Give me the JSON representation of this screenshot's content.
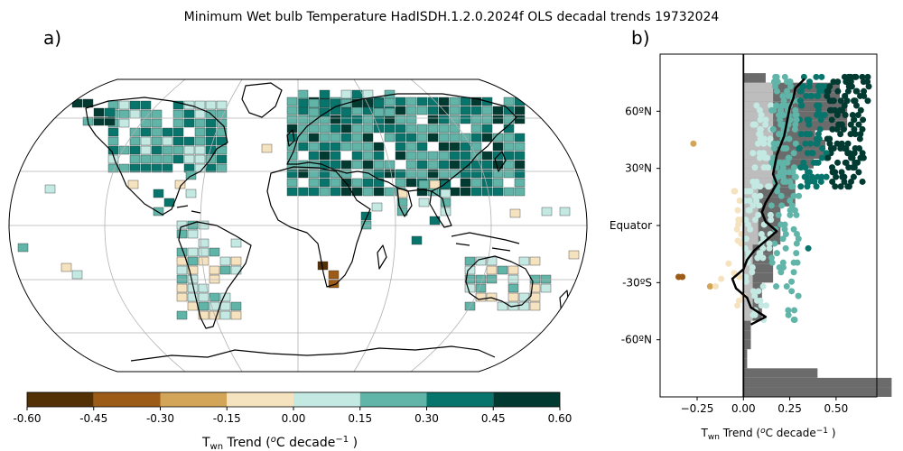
{
  "title": "Minimum Wet bulb Temperature HadISDH.1.2.0.2024f OLS decadal trends 19732024",
  "panels": {
    "a": "a)",
    "b": "b)"
  },
  "colors": {
    "palette": [
      "#543005",
      "#9c5b16",
      "#d3a558",
      "#f5e2bf",
      "#c4e9e3",
      "#61b4a8",
      "#08756c",
      "#013a31"
    ],
    "land_outline": "#000000",
    "grid": "#b0b0b0",
    "zonal_dark": "#6b6b6b",
    "zonal_light": "#bdbdbd",
    "median_line": "#000000"
  },
  "chart_data": [
    {
      "type": "heatmap",
      "projection": "Robinson",
      "grid": true,
      "colorbar": {
        "ticks": [
          "-0.60",
          "-0.45",
          "-0.30",
          "-0.15",
          "0.00",
          "0.15",
          "0.30",
          "0.45",
          "0.60"
        ],
        "range": [
          -0.6,
          0.6
        ],
        "label_main": "T",
        "label_sub": "wn",
        "label_rest": " Trend (",
        "label_sup1": "o",
        "label_unit": "C decade",
        "label_sup2": "−1",
        "label_end": " )"
      }
    },
    {
      "type": "scatter",
      "xlim": [
        -0.45,
        0.72
      ],
      "ylim": [
        -90,
        90
      ],
      "xticks": [
        "−0.25",
        "0.00",
        "0.25",
        "0.50"
      ],
      "xtick_values": [
        -0.25,
        0.0,
        0.25,
        0.5
      ],
      "yticks": [
        "60ºN",
        "30ºN",
        "Equator",
        "-30ºS",
        "-60ºN"
      ],
      "ytick_values": [
        60,
        30,
        0,
        -30,
        -60
      ],
      "xlabel_main": "T",
      "xlabel_sub": "wn",
      "xlabel_rest": " Trend (",
      "xlabel_sup1": "o",
      "xlabel_unit": "C decade",
      "xlabel_sup2": "−1",
      "xlabel_end": " )",
      "median_line": [
        {
          "lat": 77,
          "trend": 0.33
        },
        {
          "lat": 72,
          "trend": 0.28
        },
        {
          "lat": 67,
          "trend": 0.27
        },
        {
          "lat": 62,
          "trend": 0.25
        },
        {
          "lat": 57,
          "trend": 0.24
        },
        {
          "lat": 52,
          "trend": 0.23
        },
        {
          "lat": 47,
          "trend": 0.22
        },
        {
          "lat": 42,
          "trend": 0.2
        },
        {
          "lat": 37,
          "trend": 0.18
        },
        {
          "lat": 32,
          "trend": 0.17
        },
        {
          "lat": 27,
          "trend": 0.16
        },
        {
          "lat": 22,
          "trend": 0.18
        },
        {
          "lat": 17,
          "trend": 0.15
        },
        {
          "lat": 12,
          "trend": 0.12
        },
        {
          "lat": 7,
          "trend": 0.1
        },
        {
          "lat": 2,
          "trend": 0.12
        },
        {
          "lat": -3,
          "trend": 0.18
        },
        {
          "lat": -8,
          "trend": 0.12
        },
        {
          "lat": -13,
          "trend": 0.06
        },
        {
          "lat": -18,
          "trend": 0.02
        },
        {
          "lat": -23,
          "trend": 0.0
        },
        {
          "lat": -28,
          "trend": -0.06
        },
        {
          "lat": -33,
          "trend": -0.04
        },
        {
          "lat": -38,
          "trend": 0.02
        },
        {
          "lat": -43,
          "trend": 0.04
        },
        {
          "lat": -48,
          "trend": 0.12
        },
        {
          "lat": -52,
          "trend": 0.04
        }
      ]
    }
  ]
}
